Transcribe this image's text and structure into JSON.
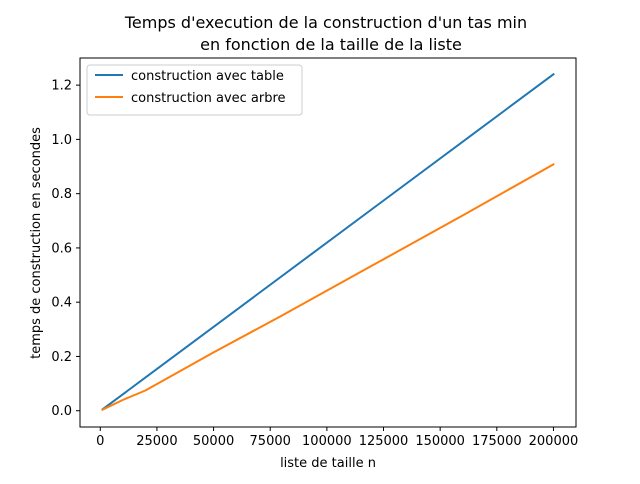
{
  "chart_data": {
    "type": "line",
    "title_lines": [
      "Temps d'execution de la construction d'un tas min",
      "en fonction de la taille de la liste"
    ],
    "xlabel": "liste de taille n",
    "ylabel": "temps de construction en secondes",
    "xlim": [
      -8950,
      209950
    ],
    "ylim": [
      -0.06,
      1.3
    ],
    "xticks": [
      0,
      25000,
      50000,
      75000,
      100000,
      125000,
      150000,
      175000,
      200000
    ],
    "yticks": [
      0.0,
      0.2,
      0.4,
      0.6,
      0.8,
      1.0,
      1.2
    ],
    "ytick_labels": [
      "0.0",
      "0.2",
      "0.4",
      "0.6",
      "0.8",
      "1.0",
      "1.2"
    ],
    "grid": false,
    "legend_position": "upper-left",
    "series": [
      {
        "name": "construction avec table",
        "color": "#1f77b4",
        "x": [
          1000,
          200000
        ],
        "y": [
          0.005,
          1.24
        ]
      },
      {
        "name": "construction avec arbre",
        "color": "#ff7f0e",
        "x": [
          1000,
          5000,
          10000,
          20000,
          50000,
          80000,
          120000,
          160000,
          200000
        ],
        "y": [
          0.004,
          0.02,
          0.04,
          0.075,
          0.215,
          0.35,
          0.535,
          0.72,
          0.908
        ]
      }
    ]
  }
}
